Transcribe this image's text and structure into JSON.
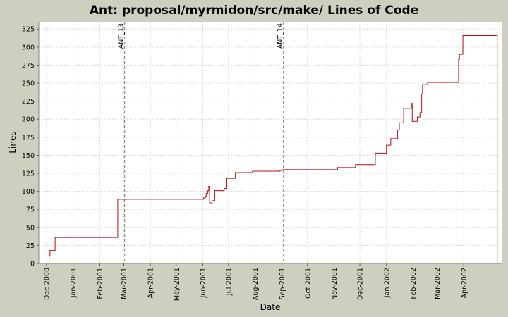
{
  "chart_data": {
    "type": "line",
    "title": "Ant: proposal/myrmidon/src/make/ Lines of Code",
    "xlabel": "Date",
    "ylabel": "Lines",
    "x_range": [
      "2000-11-22",
      "2002-05-16"
    ],
    "ylim": [
      0,
      335
    ],
    "y_ticks": [
      0,
      25,
      50,
      75,
      100,
      125,
      150,
      175,
      200,
      225,
      250,
      275,
      300,
      325
    ],
    "x_ticks": [
      {
        "label": "Dec-2000",
        "date": "2000-12-01"
      },
      {
        "label": "Jan-2001",
        "date": "2001-01-01"
      },
      {
        "label": "Feb-2001",
        "date": "2001-02-01"
      },
      {
        "label": "Mar-2001",
        "date": "2001-03-01"
      },
      {
        "label": "Apr-2001",
        "date": "2001-04-01"
      },
      {
        "label": "May-2001",
        "date": "2001-05-01"
      },
      {
        "label": "Jun-2001",
        "date": "2001-06-01"
      },
      {
        "label": "Jul-2001",
        "date": "2001-07-01"
      },
      {
        "label": "Aug-2001",
        "date": "2001-08-01"
      },
      {
        "label": "Sep-2001",
        "date": "2001-09-01"
      },
      {
        "label": "Oct-2001",
        "date": "2001-10-01"
      },
      {
        "label": "Nov-2001",
        "date": "2001-11-01"
      },
      {
        "label": "Dec-2001",
        "date": "2001-12-01"
      },
      {
        "label": "Jan-2002",
        "date": "2002-01-01"
      },
      {
        "label": "Feb-2002",
        "date": "2002-02-01"
      },
      {
        "label": "Mar-2002",
        "date": "2002-03-01"
      },
      {
        "label": "Apr-2002",
        "date": "2002-04-01"
      }
    ],
    "grid": true,
    "markers": [
      {
        "label": "ANT_13",
        "date": "2001-03-02"
      },
      {
        "label": "ANT_14",
        "date": "2001-09-03"
      }
    ],
    "series": [
      {
        "color": "#b01010",
        "points": [
          {
            "date": "2000-12-03",
            "value": 0
          },
          {
            "date": "2000-12-04",
            "value": 10
          },
          {
            "date": "2000-12-05",
            "value": 18
          },
          {
            "date": "2000-12-11",
            "value": 36
          },
          {
            "date": "2001-02-22",
            "value": 89
          },
          {
            "date": "2001-06-02",
            "value": 91
          },
          {
            "date": "2001-06-04",
            "value": 93
          },
          {
            "date": "2001-06-05",
            "value": 97
          },
          {
            "date": "2001-06-07",
            "value": 101
          },
          {
            "date": "2001-06-08",
            "value": 107
          },
          {
            "date": "2001-06-09",
            "value": 84
          },
          {
            "date": "2001-06-12",
            "value": 87
          },
          {
            "date": "2001-06-15",
            "value": 101
          },
          {
            "date": "2001-06-26",
            "value": 104
          },
          {
            "date": "2001-06-29",
            "value": 118
          },
          {
            "date": "2001-07-09",
            "value": 126
          },
          {
            "date": "2001-07-29",
            "value": 128
          },
          {
            "date": "2001-08-30",
            "value": 129
          },
          {
            "date": "2001-09-01",
            "value": 130
          },
          {
            "date": "2001-11-05",
            "value": 133
          },
          {
            "date": "2001-11-26",
            "value": 137
          },
          {
            "date": "2001-12-19",
            "value": 153
          },
          {
            "date": "2002-01-01",
            "value": 164
          },
          {
            "date": "2002-01-06",
            "value": 173
          },
          {
            "date": "2002-01-14",
            "value": 185
          },
          {
            "date": "2002-01-16",
            "value": 195
          },
          {
            "date": "2002-01-21",
            "value": 215
          },
          {
            "date": "2002-01-30",
            "value": 222
          },
          {
            "date": "2002-01-31",
            "value": 197
          },
          {
            "date": "2002-02-06",
            "value": 203
          },
          {
            "date": "2002-02-09",
            "value": 209
          },
          {
            "date": "2002-02-11",
            "value": 235
          },
          {
            "date": "2002-02-12",
            "value": 248
          },
          {
            "date": "2002-02-18",
            "value": 251
          },
          {
            "date": "2002-03-26",
            "value": 283
          },
          {
            "date": "2002-03-27",
            "value": 290
          },
          {
            "date": "2002-03-31",
            "value": 316
          },
          {
            "date": "2002-05-10",
            "value": 0
          }
        ]
      }
    ]
  }
}
